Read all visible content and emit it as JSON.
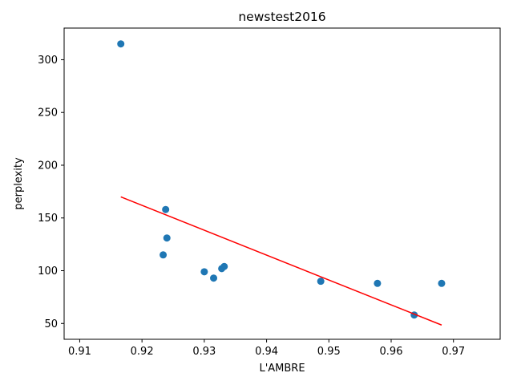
{
  "chart_data": {
    "type": "scatter",
    "title": "newstest2016",
    "xlabel": "L'AMBRE",
    "ylabel": "perplexity",
    "xlim": [
      0.9075,
      0.9775
    ],
    "ylim": [
      35,
      330
    ],
    "xticks": [
      0.91,
      0.92,
      0.93,
      0.94,
      0.95,
      0.96,
      0.97
    ],
    "xtick_labels": [
      "0.91",
      "0.92",
      "0.93",
      "0.94",
      "0.95",
      "0.96",
      "0.97"
    ],
    "yticks": [
      50,
      100,
      150,
      200,
      250,
      300
    ],
    "ytick_labels": [
      "50",
      "100",
      "150",
      "200",
      "250",
      "300"
    ],
    "grid": false,
    "marker_color": "#1f77b4",
    "series": [
      {
        "points": [
          {
            "x": 0.9166,
            "y": 315
          },
          {
            "x": 0.9238,
            "y": 158
          },
          {
            "x": 0.924,
            "y": 131
          },
          {
            "x": 0.9234,
            "y": 115
          },
          {
            "x": 0.93,
            "y": 99
          },
          {
            "x": 0.9315,
            "y": 93
          },
          {
            "x": 0.9328,
            "y": 102
          },
          {
            "x": 0.9332,
            "y": 104
          },
          {
            "x": 0.9487,
            "y": 90
          },
          {
            "x": 0.9578,
            "y": 88
          },
          {
            "x": 0.9637,
            "y": 58
          },
          {
            "x": 0.9681,
            "y": 88
          }
        ]
      }
    ],
    "fit_line": {
      "color": "#ff0000",
      "points": [
        {
          "x": 0.9166,
          "y": 170
        },
        {
          "x": 0.9681,
          "y": 48.5
        }
      ]
    }
  }
}
